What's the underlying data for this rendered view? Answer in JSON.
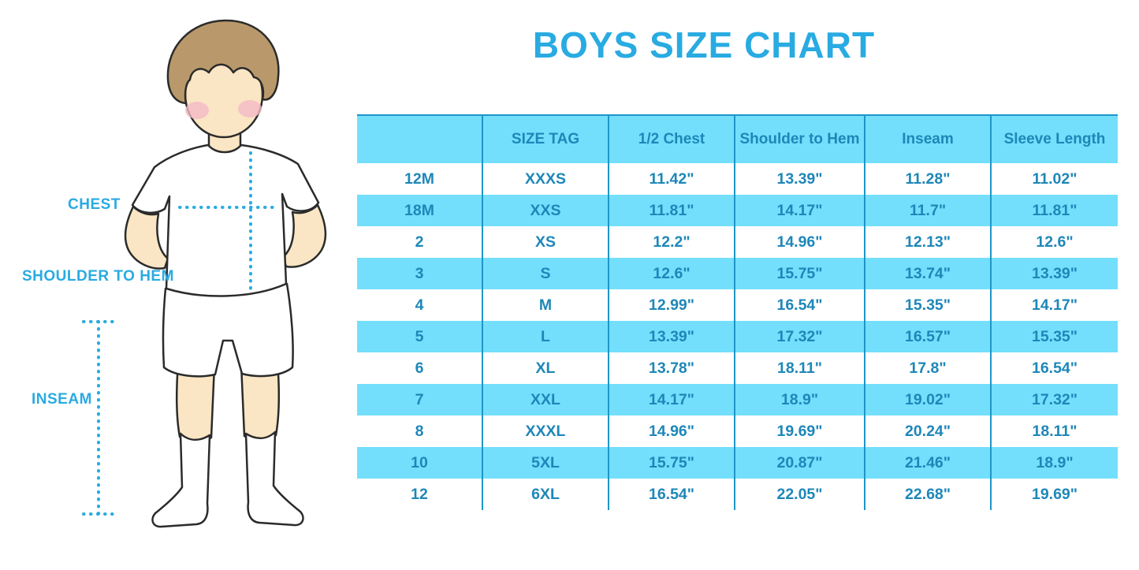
{
  "page": {
    "title": "BOYS SIZE CHART"
  },
  "figure": {
    "illustration": "boy-mannequin-with-measurement-guides",
    "labels": {
      "chest": "CHEST",
      "shoulder_to_hem": "SHOULDER TO HEM",
      "inseam": "INSEAM"
    }
  },
  "colors": {
    "accent_blue": "#29ABE2",
    "table_text": "#1E87B8",
    "grid_line": "#1E96C6",
    "row_cyan": "#73DFFC",
    "row_white": "#FFFFFF",
    "skin": "#FAE6C4",
    "hair": "#B9996B",
    "cheek": "#F4B9C6"
  },
  "chart_data": {
    "type": "table",
    "title": "BOYS SIZE CHART",
    "columns": [
      "",
      "SIZE TAG",
      "1/2 Chest",
      "Shoulder to Hem",
      "Inseam",
      "Sleeve Length"
    ],
    "rows": [
      [
        "12M",
        "XXXS",
        "11.42\"",
        "13.39\"",
        "11.28\"",
        "11.02\""
      ],
      [
        "18M",
        "XXS",
        "11.81\"",
        "14.17\"",
        "11.7\"",
        "11.81\""
      ],
      [
        "2",
        "XS",
        "12.2\"",
        "14.96\"",
        "12.13\"",
        "12.6\""
      ],
      [
        "3",
        "S",
        "12.6\"",
        "15.75\"",
        "13.74\"",
        "13.39\""
      ],
      [
        "4",
        "M",
        "12.99\"",
        "16.54\"",
        "15.35\"",
        "14.17\""
      ],
      [
        "5",
        "L",
        "13.39\"",
        "17.32\"",
        "16.57\"",
        "15.35\""
      ],
      [
        "6",
        "XL",
        "13.78\"",
        "18.11\"",
        "17.8\"",
        "16.54\""
      ],
      [
        "7",
        "XXL",
        "14.17\"",
        "18.9\"",
        "19.02\"",
        "17.32\""
      ],
      [
        "8",
        "XXXL",
        "14.96\"",
        "19.69\"",
        "20.24\"",
        "18.11\""
      ],
      [
        "10",
        "5XL",
        "15.75\"",
        "20.87\"",
        "21.46\"",
        "18.9\""
      ],
      [
        "12",
        "6XL",
        "16.54\"",
        "22.05\"",
        "22.68\"",
        "19.69\""
      ]
    ],
    "layout": {
      "header_fill": "cyan",
      "row_striping": "alternating white / cyan starting white after header",
      "units": "inches",
      "grid": "vertical column separators + top rule only"
    }
  }
}
